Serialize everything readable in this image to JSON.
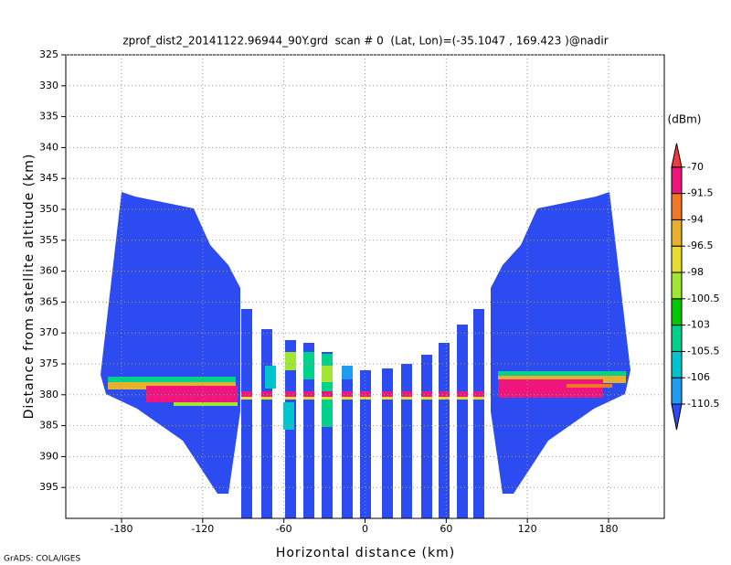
{
  "chart_data": {
    "type": "field",
    "title": "zprof_dist2_20141122.96944_90Y.grd  scan # 0  (Lat, Lon)=(-35.1047 , 169.423 )@nadir",
    "xlabel": "Horizontal distance (km)",
    "ylabel": "Distance from satellite altitude (km)",
    "xlim": [
      -221.2,
      221.2
    ],
    "xticks": [
      -180,
      -120,
      -60,
      0,
      60,
      120,
      180
    ],
    "ylim": [
      325,
      400
    ],
    "yticks": [
      325,
      330,
      335,
      340,
      345,
      350,
      355,
      360,
      365,
      370,
      375,
      380,
      385,
      390,
      395
    ],
    "y_inverted": true,
    "grid": true,
    "colorbar_unit": "(dBm)",
    "levels": [
      -110.5,
      -106,
      -105.5,
      -103,
      -100.5,
      -98,
      -96.5,
      -94,
      -91.5,
      -70
    ],
    "colors": [
      "#2c4cf2",
      "#1e9cf0",
      "#00c4cc",
      "#00d28c",
      "#00c800",
      "#a0e632",
      "#e6dc32",
      "#e6af2d",
      "#f07828",
      "#f0147f",
      "#f03c3c"
    ],
    "footer": "GrADS: COLA/IGES"
  }
}
